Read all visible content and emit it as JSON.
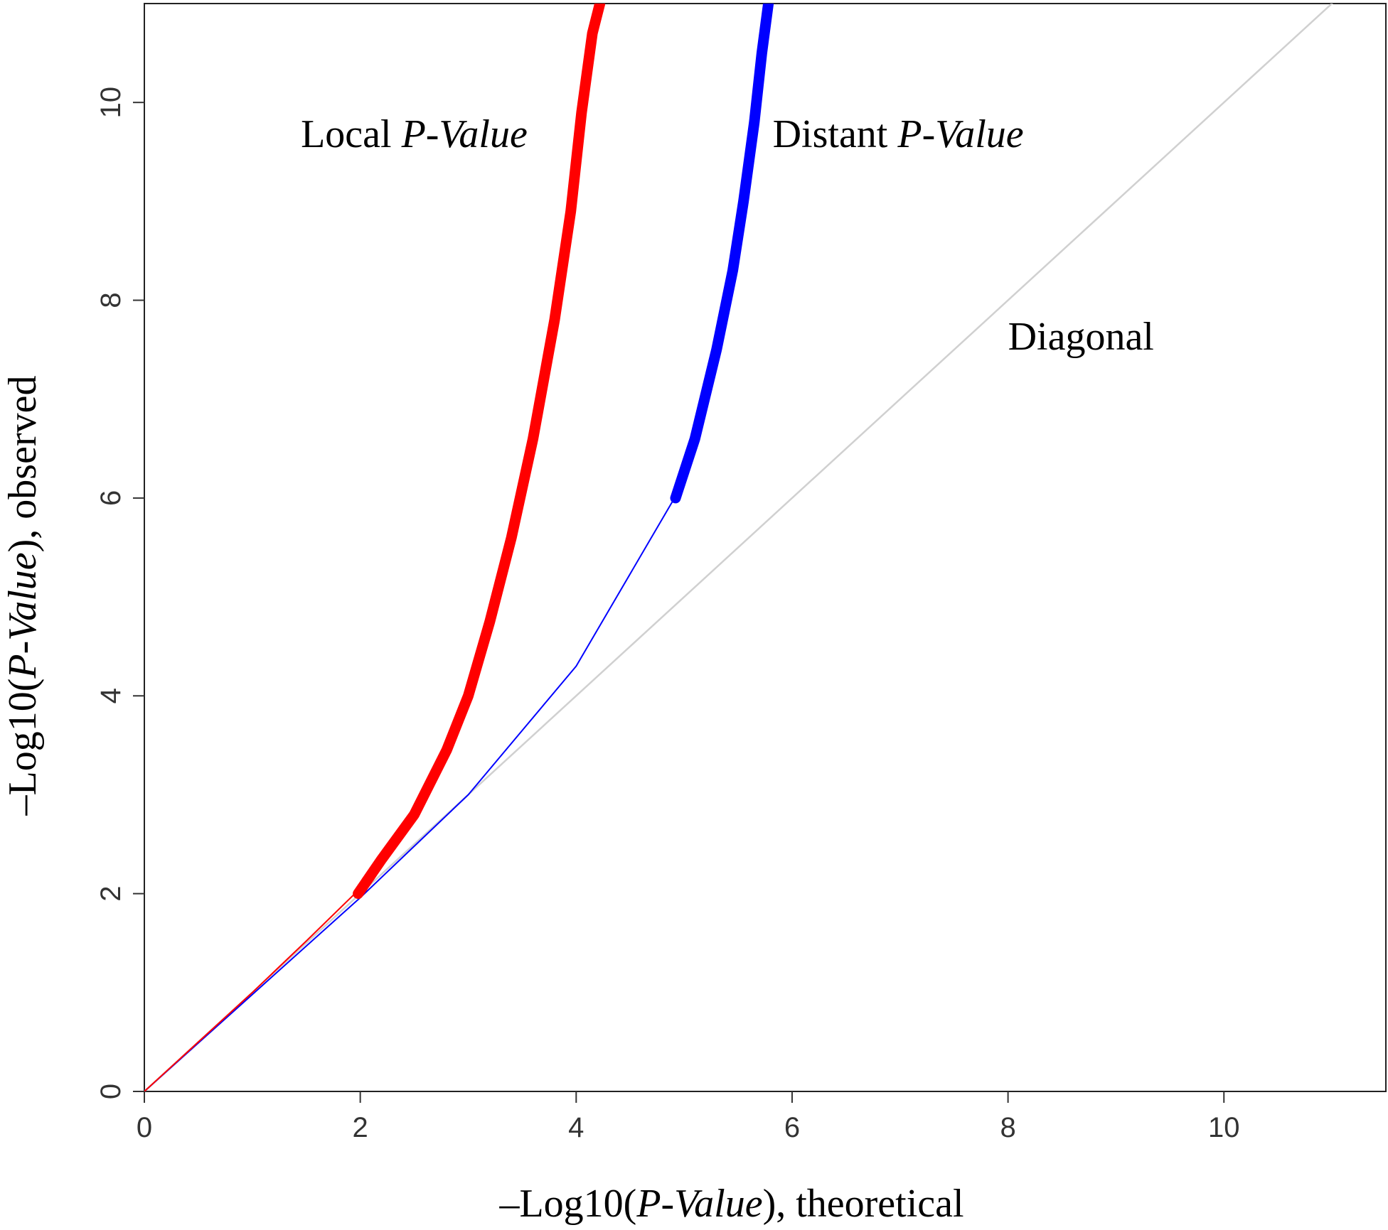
{
  "chart_data": {
    "type": "line",
    "title": "",
    "xlabel": {
      "prefix": "–Log10(",
      "italic": "P-Value",
      "suffix": "), theoretical"
    },
    "ylabel": {
      "prefix": "–Log10(",
      "italic": "P-Value",
      "suffix": "), observed"
    },
    "xlim": [
      0,
      11.5
    ],
    "ylim": [
      0,
      11
    ],
    "xticks": [
      "0",
      "2",
      "4",
      "6",
      "8",
      "10"
    ],
    "yticks": [
      "0",
      "2",
      "4",
      "6",
      "8",
      "10"
    ],
    "grid": false,
    "legend": "none",
    "series": [
      {
        "key": "local",
        "color": "#ff0000",
        "thin": {
          "x": [
            0,
            0.5,
            1.0,
            1.5,
            1.95
          ],
          "y": [
            0,
            0.5,
            1.0,
            1.52,
            2.0
          ]
        },
        "thick": {
          "x": [
            1.98,
            2.2,
            2.5,
            2.8,
            3.0,
            3.2,
            3.4,
            3.6,
            3.8,
            3.95,
            4.05,
            4.15,
            4.22
          ],
          "y": [
            2.0,
            2.35,
            2.8,
            3.45,
            4.0,
            4.75,
            5.6,
            6.6,
            7.8,
            8.9,
            9.9,
            10.7,
            11.0
          ]
        }
      },
      {
        "key": "distant",
        "color": "#0000ff",
        "thin": {
          "x": [
            0,
            1.0,
            2.0,
            3.0,
            4.0,
            4.9
          ],
          "y": [
            0,
            0.98,
            1.96,
            3.0,
            4.3,
            5.98
          ]
        },
        "thick": {
          "x": [
            4.92,
            5.1,
            5.3,
            5.45,
            5.55,
            5.65,
            5.72,
            5.78
          ],
          "y": [
            6.0,
            6.6,
            7.5,
            8.3,
            9.0,
            9.8,
            10.5,
            11.0
          ]
        }
      },
      {
        "key": "diagonal",
        "color": "#d0d0d0",
        "thin": {
          "x": [
            0,
            11.5
          ],
          "y": [
            0,
            11.5
          ]
        }
      }
    ],
    "annotations": [
      {
        "key": "local",
        "text": "Local ",
        "italic": "P-Value",
        "x": 1.45,
        "y": 9.55
      },
      {
        "key": "distant",
        "text": "Distant ",
        "italic": "P-Value",
        "x": 5.82,
        "y": 9.55
      },
      {
        "key": "diagonal",
        "text": "Diagonal",
        "italic": "",
        "x": 8.0,
        "y": 7.5
      }
    ]
  }
}
